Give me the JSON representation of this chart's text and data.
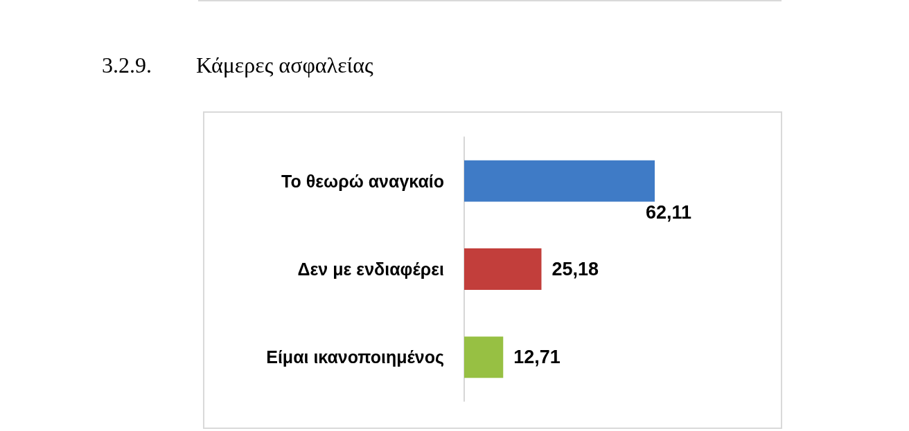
{
  "chart_data": {
    "type": "bar",
    "orientation": "horizontal",
    "title": "3.2.9. Κάμερες ασφαλείας",
    "categories": [
      "Το θεωρώ αναγκαίο",
      "Δεν με ενδιαφέρει",
      "Είμαι ικανοποιημένος"
    ],
    "values": [
      62.11,
      25.18,
      12.71
    ],
    "colors": [
      "#3f7bc6",
      "#c23e3b",
      "#97c043"
    ],
    "value_labels": [
      "62,11",
      "25,18",
      "12,71"
    ],
    "tick_labels": "y"
  }
}
